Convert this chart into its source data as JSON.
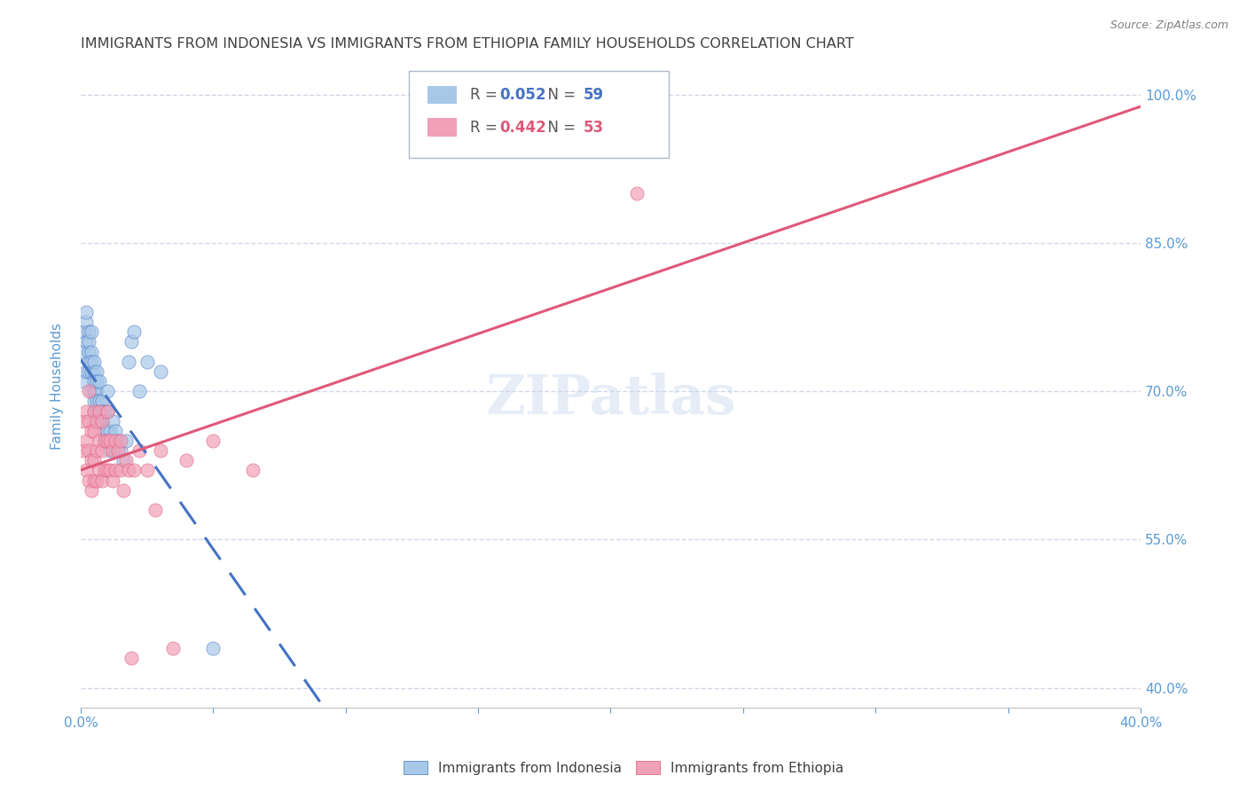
{
  "title": "IMMIGRANTS FROM INDONESIA VS IMMIGRANTS FROM ETHIOPIA FAMILY HOUSEHOLDS CORRELATION CHART",
  "source": "Source: ZipAtlas.com",
  "ylabel": "Family Households",
  "xlim": [
    0.0,
    0.4
  ],
  "ylim": [
    0.38,
    1.03
  ],
  "xtick_values": [
    0.0,
    0.05,
    0.1,
    0.15,
    0.2,
    0.25,
    0.3,
    0.35,
    0.4
  ],
  "xtick_show": [
    0.0,
    0.4
  ],
  "ytick_values": [
    0.4,
    0.55,
    0.7,
    0.85,
    1.0
  ],
  "color_indonesia": "#a8c8e8",
  "color_ethiopia": "#f0a0b8",
  "color_indonesia_line": "#4472c4",
  "color_ethiopia_line": "#e05878",
  "color_axis": "#5b9bd5",
  "color_grid": "#d0d8e8",
  "legend1_r": "0.052",
  "legend1_n": "59",
  "legend2_r": "0.442",
  "legend2_n": "53",
  "indonesia_x": [
    0.001,
    0.001,
    0.001,
    0.002,
    0.002,
    0.002,
    0.002,
    0.003,
    0.003,
    0.003,
    0.003,
    0.003,
    0.004,
    0.004,
    0.004,
    0.004,
    0.004,
    0.005,
    0.005,
    0.005,
    0.005,
    0.005,
    0.005,
    0.006,
    0.006,
    0.006,
    0.006,
    0.006,
    0.007,
    0.007,
    0.007,
    0.007,
    0.008,
    0.008,
    0.008,
    0.009,
    0.009,
    0.009,
    0.01,
    0.01,
    0.01,
    0.01,
    0.011,
    0.011,
    0.012,
    0.012,
    0.013,
    0.013,
    0.014,
    0.015,
    0.016,
    0.017,
    0.018,
    0.019,
    0.02,
    0.022,
    0.025,
    0.03,
    0.05
  ],
  "indonesia_y": [
    0.71,
    0.74,
    0.76,
    0.72,
    0.75,
    0.77,
    0.78,
    0.72,
    0.74,
    0.76,
    0.73,
    0.75,
    0.7,
    0.72,
    0.74,
    0.73,
    0.76,
    0.68,
    0.7,
    0.72,
    0.69,
    0.71,
    0.73,
    0.68,
    0.7,
    0.72,
    0.69,
    0.71,
    0.67,
    0.69,
    0.71,
    0.68,
    0.67,
    0.69,
    0.68,
    0.66,
    0.68,
    0.65,
    0.66,
    0.68,
    0.65,
    0.7,
    0.64,
    0.66,
    0.65,
    0.67,
    0.64,
    0.66,
    0.65,
    0.64,
    0.63,
    0.65,
    0.73,
    0.75,
    0.76,
    0.7,
    0.73,
    0.72,
    0.44
  ],
  "ethiopia_x": [
    0.001,
    0.001,
    0.002,
    0.002,
    0.002,
    0.003,
    0.003,
    0.003,
    0.003,
    0.004,
    0.004,
    0.004,
    0.005,
    0.005,
    0.005,
    0.005,
    0.006,
    0.006,
    0.006,
    0.007,
    0.007,
    0.007,
    0.008,
    0.008,
    0.008,
    0.009,
    0.009,
    0.01,
    0.01,
    0.01,
    0.011,
    0.011,
    0.012,
    0.012,
    0.013,
    0.013,
    0.014,
    0.015,
    0.015,
    0.016,
    0.017,
    0.018,
    0.019,
    0.02,
    0.022,
    0.025,
    0.028,
    0.03,
    0.035,
    0.04,
    0.05,
    0.065,
    0.21
  ],
  "ethiopia_y": [
    0.64,
    0.67,
    0.62,
    0.65,
    0.68,
    0.61,
    0.64,
    0.67,
    0.7,
    0.6,
    0.63,
    0.66,
    0.61,
    0.63,
    0.66,
    0.68,
    0.61,
    0.64,
    0.67,
    0.62,
    0.65,
    0.68,
    0.61,
    0.64,
    0.67,
    0.62,
    0.65,
    0.62,
    0.65,
    0.68,
    0.62,
    0.65,
    0.61,
    0.64,
    0.62,
    0.65,
    0.64,
    0.62,
    0.65,
    0.6,
    0.63,
    0.62,
    0.43,
    0.62,
    0.64,
    0.62,
    0.58,
    0.64,
    0.44,
    0.63,
    0.65,
    0.62,
    0.9
  ],
  "watermark": "ZIPatlas",
  "background_color": "#ffffff",
  "title_color": "#404040",
  "title_fontsize": 11.5,
  "axis_label_color": "#5b9bd5",
  "tick_color": "#5b9bd5"
}
